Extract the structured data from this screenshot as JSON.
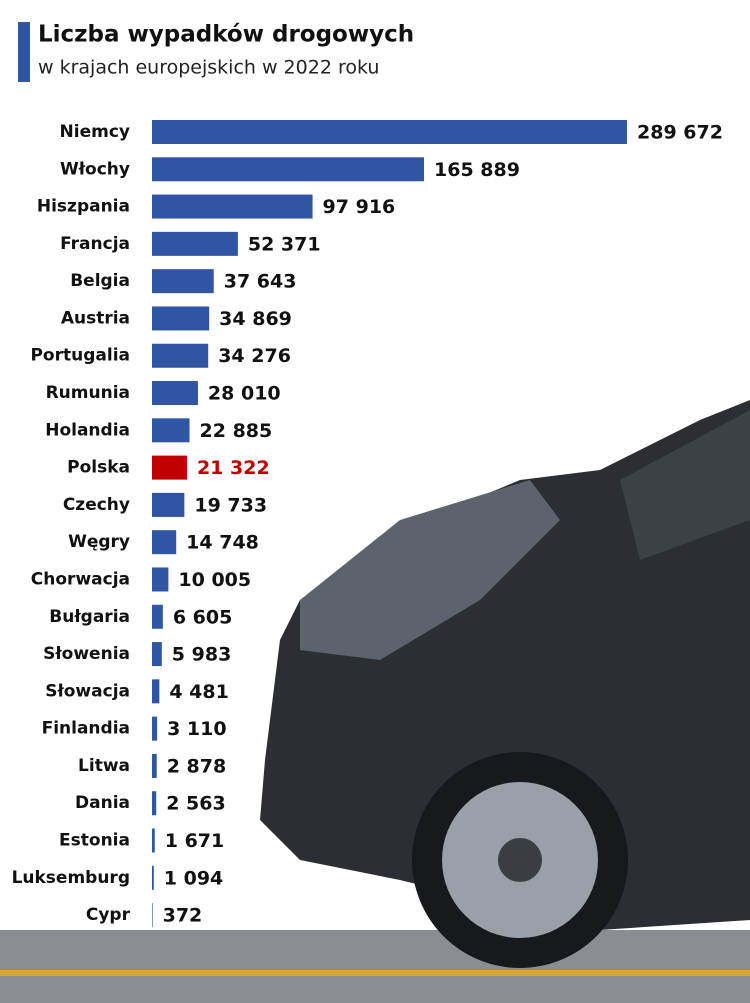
{
  "chart_data": {
    "type": "bar",
    "orientation": "horizontal",
    "title": "Liczba wypadków drogowych",
    "subtitle": "w krajach europejskich w 2022 roku",
    "categories": [
      "Niemcy",
      "Włochy",
      "Hiszpania",
      "Francja",
      "Belgia",
      "Austria",
      "Portugalia",
      "Rumunia",
      "Holandia",
      "Polska",
      "Czechy",
      "Węgry",
      "Chorwacja",
      "Bułgaria",
      "Słowenia",
      "Słowacja",
      "Finlandia",
      "Litwa",
      "Dania",
      "Estonia",
      "Luksemburg",
      "Cypr"
    ],
    "values": [
      289672,
      165889,
      97916,
      52371,
      37643,
      34869,
      34276,
      28010,
      22885,
      21322,
      19733,
      14748,
      10005,
      6605,
      5983,
      4481,
      3110,
      2878,
      2563,
      1671,
      1094,
      372
    ],
    "value_labels": [
      "289 672",
      "165 889",
      "97 916",
      "52 371",
      "37 643",
      "34 869",
      "34 276",
      "28 010",
      "22 885",
      "21 322",
      "19 733",
      "14 748",
      "10 005",
      "6 605",
      "5 983",
      "4 481",
      "3 110",
      "2 878",
      "2 563",
      "1 671",
      "1 094",
      "372"
    ],
    "colors": [
      "#2f55a4",
      "#2f55a4",
      "#2f55a4",
      "#2f55a4",
      "#2f55a4",
      "#2f55a4",
      "#2f55a4",
      "#2f55a4",
      "#2f55a4",
      "#c00000",
      "#2f55a4",
      "#2f55a4",
      "#2f55a4",
      "#2f55a4",
      "#2f55a4",
      "#2f55a4",
      "#2f55a4",
      "#2f55a4",
      "#2f55a4",
      "#2f55a4",
      "#2f55a4",
      "#2f55a4"
    ],
    "label_colors": [
      "#111",
      "#111",
      "#111",
      "#111",
      "#111",
      "#111",
      "#111",
      "#111",
      "#111",
      "#c00000",
      "#111",
      "#111",
      "#111",
      "#111",
      "#111",
      "#111",
      "#111",
      "#111",
      "#111",
      "#111",
      "#111",
      "#111"
    ]
  }
}
